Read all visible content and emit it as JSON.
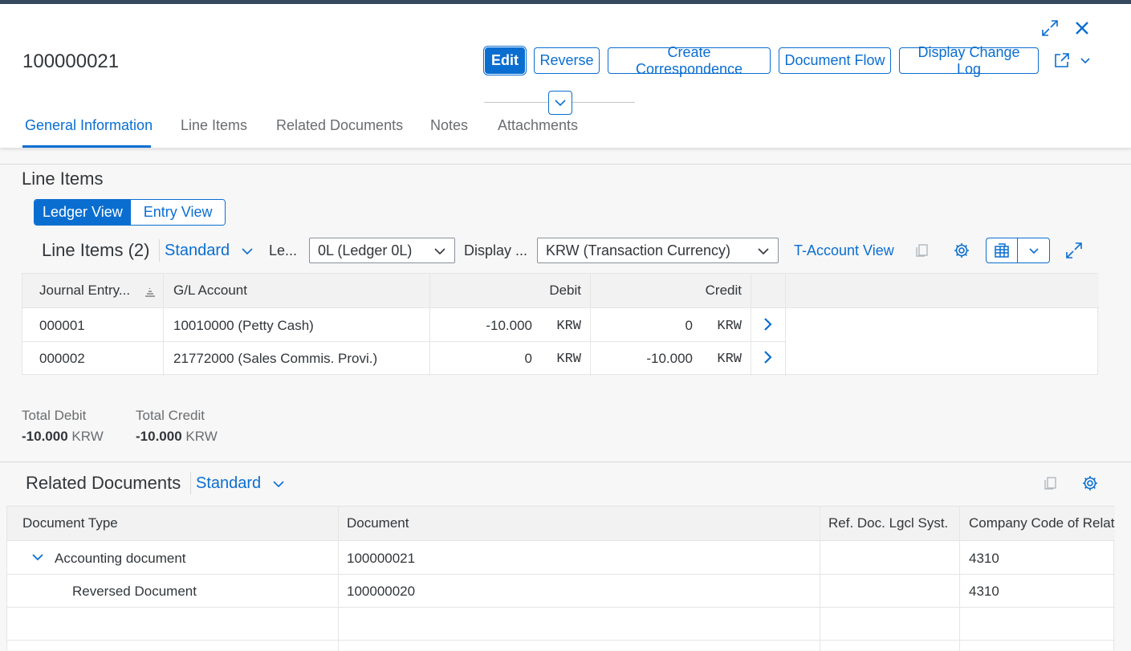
{
  "header": {
    "document_number": "100000021",
    "actions": {
      "edit": "Edit",
      "reverse": "Reverse",
      "create_correspondence": "Create Correspondence",
      "document_flow": "Document Flow",
      "display_change_log": "Display Change Log"
    },
    "icons": [
      "enter-fullscreen-icon",
      "close-icon",
      "share-icon",
      "chevron-down-icon",
      "collapse-header-icon"
    ]
  },
  "tabs": [
    {
      "label": "General Information",
      "active": true
    },
    {
      "label": "Line Items",
      "active": false
    },
    {
      "label": "Related Documents",
      "active": false
    },
    {
      "label": "Notes",
      "active": false
    },
    {
      "label": "Attachments",
      "active": false
    }
  ],
  "line_items_section": {
    "title": "Line Items",
    "views": {
      "ledger": "Ledger View",
      "entry": "Entry View",
      "selected": "Ledger View"
    },
    "toolbar": {
      "table_title": "Line Items (2)",
      "variant": "Standard",
      "ledger_label": "Le...",
      "ledger_value": "0L (Ledger 0L)",
      "display_label": "Display ...",
      "currency_value": "KRW (Transaction Currency)",
      "t_account_view": "T-Account View"
    },
    "columns": [
      "Journal Entry...",
      "G/L Account",
      "Debit",
      "Credit"
    ],
    "rows": [
      {
        "journal_entry": "000001",
        "gl_account": "10010000 (Petty Cash)",
        "debit": "-10.000",
        "debit_currency": "KRW",
        "credit": "0",
        "credit_currency": "KRW"
      },
      {
        "journal_entry": "000002",
        "gl_account": "21772000 (Sales Commis. Provi.)",
        "debit": "0",
        "debit_currency": "KRW",
        "credit": "-10.000",
        "credit_currency": "KRW"
      }
    ],
    "totals": {
      "debit_label": "Total Debit",
      "debit_value": "-10.000",
      "debit_currency": "KRW",
      "credit_label": "Total Credit",
      "credit_value": "-10.000",
      "credit_currency": "KRW"
    }
  },
  "related_documents_section": {
    "title": "Related Documents",
    "variant": "Standard",
    "columns": [
      "Document Type",
      "Document",
      "Ref. Doc. Lgcl Syst.",
      "Company Code of Relat"
    ],
    "rows": [
      {
        "type": "Accounting document",
        "document": "100000021",
        "ref_system": "",
        "company_code": "4310",
        "expanded": true,
        "level": 0
      },
      {
        "type": "Reversed Document",
        "document": "100000020",
        "ref_system": "",
        "company_code": "4310",
        "expanded": false,
        "level": 1
      }
    ]
  },
  "colors": {
    "brand_blue": "#0a6ed1",
    "shell_bar": "#354a5f",
    "text": "#32363a",
    "secondary_text": "#6a6d70"
  }
}
